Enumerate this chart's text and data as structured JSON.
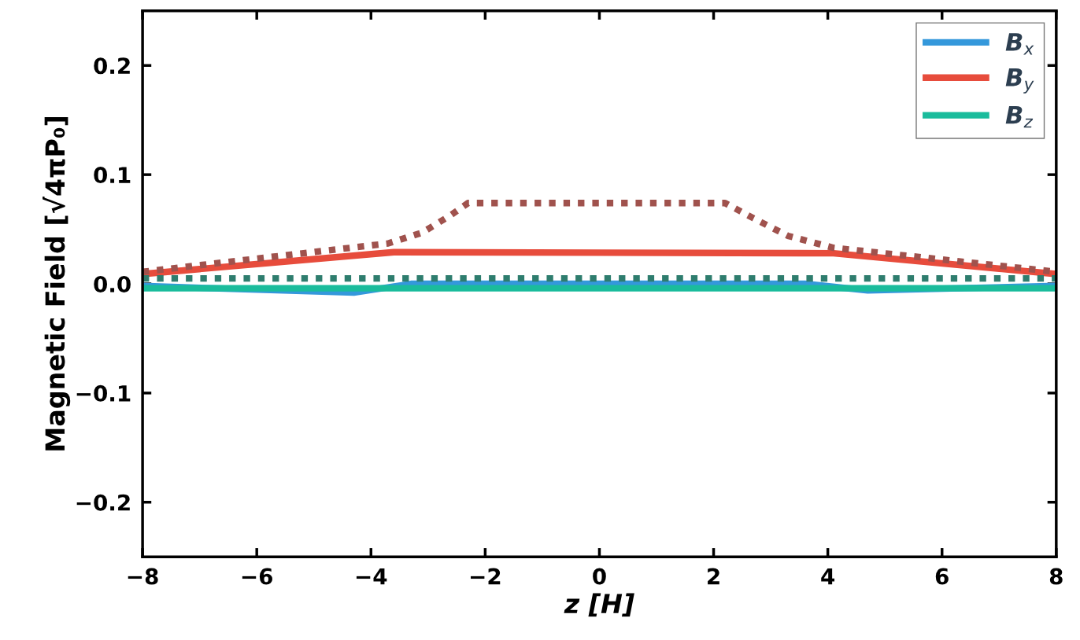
{
  "chart_data": {
    "type": "line",
    "xlabel": "z [H]",
    "ylabel": "Magnetic Field [√4πP₀]",
    "xlim": [
      -8,
      8
    ],
    "ylim": [
      -0.25,
      0.25
    ],
    "xticks": [
      {
        "value": -8,
        "label": "−8"
      },
      {
        "value": -6,
        "label": "−6"
      },
      {
        "value": -4,
        "label": "−4"
      },
      {
        "value": -2,
        "label": "−2"
      },
      0,
      2,
      4,
      6,
      8
    ],
    "yticks": [
      {
        "value": -0.2,
        "label": "−0.2"
      },
      {
        "value": -0.1,
        "label": "−0.1"
      },
      {
        "value": 0,
        "label": "0.0"
      },
      0.1,
      0.2
    ],
    "grid": false,
    "legend": "top right",
    "series": [
      {
        "name": "B$_{x}$",
        "color": "#3498db",
        "line_style": "solid",
        "x": [
          -8,
          -4.3,
          -3.3,
          3.6,
          4.7,
          8
        ],
        "values": [
          -0.002,
          -0.008,
          0.0,
          0.0,
          -0.006,
          -0.002
        ]
      },
      {
        "name": "B$_{y}$",
        "color": "#e74c3c",
        "line_style": "solid",
        "x": [
          -8,
          -3.6,
          4.1,
          8
        ],
        "values": [
          0.009,
          0.029,
          0.028,
          0.009
        ]
      },
      {
        "name": "B$_{z}$",
        "color": "#1abc9c",
        "line_style": "solid",
        "x": [
          -8,
          8
        ],
        "values": [
          -0.004,
          -0.004
        ]
      },
      {
        "color": "#a0524d",
        "line_style": "dotted",
        "x": [
          -8,
          -3.7,
          -3.1,
          -2.6,
          -2.3,
          2.2,
          2.7,
          3.3,
          4.1,
          8
        ],
        "values": [
          0.011,
          0.037,
          0.047,
          0.063,
          0.074,
          0.074,
          0.06,
          0.044,
          0.033,
          0.011
        ]
      },
      {
        "color": "#2e7d6e",
        "line_style": "dotted",
        "x": [
          -8,
          8
        ],
        "values": [
          0.005,
          0.005
        ]
      }
    ]
  }
}
